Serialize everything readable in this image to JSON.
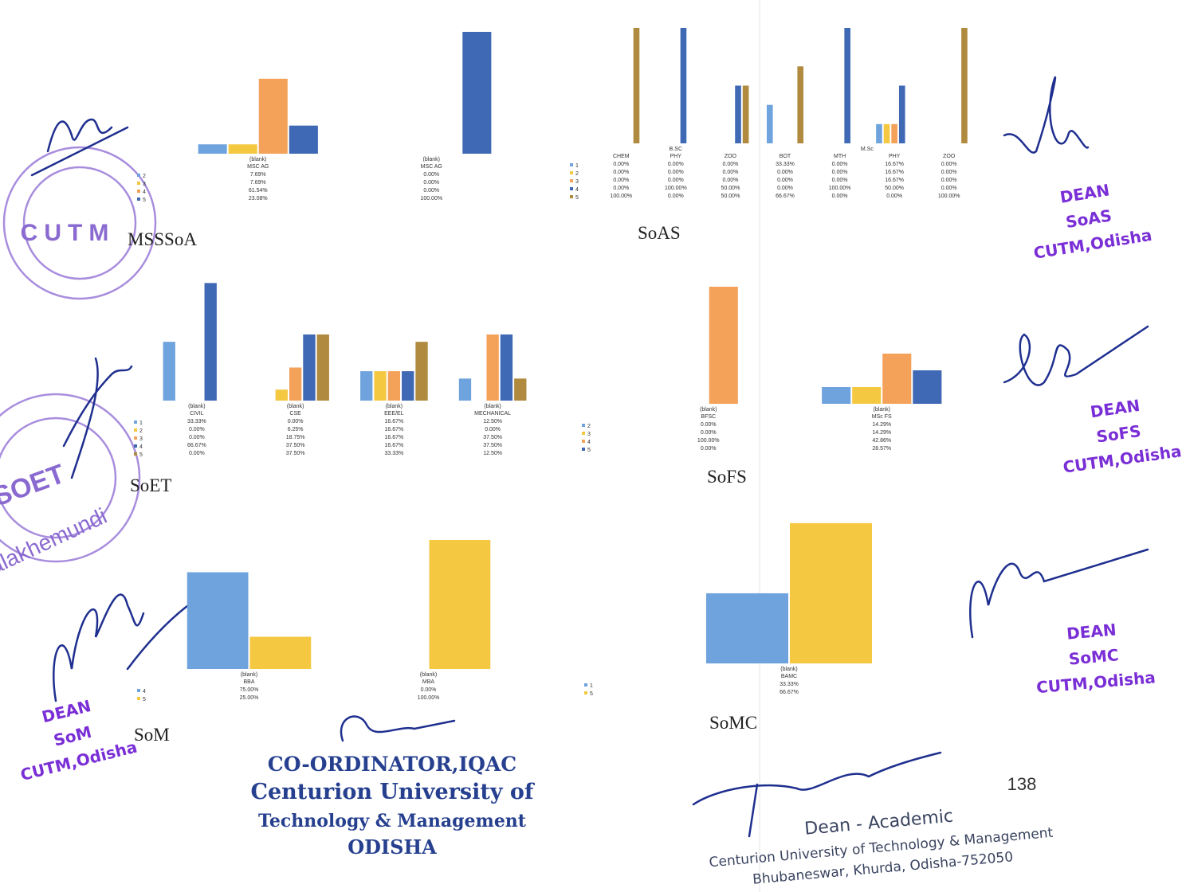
{
  "chart_data": [
    {
      "type": "bar",
      "title": "MSSSoA",
      "ylim": [
        0,
        100
      ],
      "groups": [
        {
          "label": "(blank)",
          "categories": [
            "MSC AG"
          ]
        },
        {
          "label": "(blank)",
          "categories": [
            "MSC AG"
          ]
        }
      ],
      "series": [
        {
          "name": "2",
          "color": "#6fa3de",
          "values": [
            7.69,
            0
          ],
          "value_labels": [
            "7.69%",
            "0.00%"
          ]
        },
        {
          "name": "3",
          "color": "#f5c842",
          "values": [
            7.69,
            0
          ],
          "value_labels": [
            "7.69%",
            "0.00%"
          ]
        },
        {
          "name": "4",
          "color": "#f4a15a",
          "values": [
            61.54,
            0
          ],
          "value_labels": [
            "61.54%",
            "0.00%"
          ]
        },
        {
          "name": "5",
          "color": "#3f68b5",
          "values": [
            23.08,
            100
          ],
          "value_labels": [
            "23.08%",
            "100.00%"
          ]
        }
      ]
    },
    {
      "type": "bar",
      "title": "SoAS",
      "ylim": [
        0,
        100
      ],
      "groups": [
        {
          "label": "B.SC",
          "categories": [
            "CHEM",
            "PHY",
            "ZOO"
          ]
        },
        {
          "label": "M.Sc",
          "categories": [
            "BOT",
            "MTH",
            "PHY",
            "ZOO"
          ]
        }
      ],
      "series": [
        {
          "name": "1",
          "color": "#6fa3de",
          "values": [
            0,
            0,
            0,
            33.33,
            0,
            16.67,
            0
          ],
          "value_labels": [
            "0.00%",
            "0.00%",
            "0.00%",
            "33.33%",
            "0.00%",
            "16.67%",
            "0.00%"
          ]
        },
        {
          "name": "2",
          "color": "#f5c842",
          "values": [
            0,
            0,
            0,
            0,
            0,
            16.67,
            0
          ],
          "value_labels": [
            "0.00%",
            "0.00%",
            "0.00%",
            "0.00%",
            "0.00%",
            "16.67%",
            "0.00%"
          ]
        },
        {
          "name": "3",
          "color": "#f4a15a",
          "values": [
            0,
            0,
            0,
            0,
            0,
            16.67,
            0
          ],
          "value_labels": [
            "0.00%",
            "0.00%",
            "0.00%",
            "0.00%",
            "0.00%",
            "16.67%",
            "0.00%"
          ]
        },
        {
          "name": "4",
          "color": "#3f68b5",
          "values": [
            0,
            100,
            50,
            0,
            100,
            50,
            0
          ],
          "value_labels": [
            "0.00%",
            "100.00%",
            "50.00%",
            "0.00%",
            "100.00%",
            "50.00%",
            "0.00%"
          ]
        },
        {
          "name": "5",
          "color": "#b08a3e",
          "values": [
            100,
            0,
            50,
            66.67,
            0,
            0,
            100
          ],
          "value_labels": [
            "100.00%",
            "0.00%",
            "50.00%",
            "66.67%",
            "0.00%",
            "0.00%",
            "100.00%"
          ]
        }
      ]
    },
    {
      "type": "bar",
      "title": "SoET",
      "ylim": [
        0,
        70
      ],
      "groups": [
        {
          "label": "(blank)",
          "categories": [
            "CIVIL"
          ]
        },
        {
          "label": "(blank)",
          "categories": [
            "CSE"
          ]
        },
        {
          "label": "(blank)",
          "categories": [
            "EEE/EL"
          ]
        },
        {
          "label": "(blank)",
          "categories": [
            "MECHANICAL"
          ]
        }
      ],
      "series": [
        {
          "name": "1",
          "color": "#6fa3de",
          "values": [
            33.33,
            0,
            16.67,
            12.5
          ],
          "value_labels": [
            "33.33%",
            "0.00%",
            "16.67%",
            "12.50%"
          ]
        },
        {
          "name": "2",
          "color": "#f5c842",
          "values": [
            0,
            6.25,
            16.67,
            0
          ],
          "value_labels": [
            "0.00%",
            "6.25%",
            "16.67%",
            "0.00%"
          ]
        },
        {
          "name": "3",
          "color": "#f4a15a",
          "values": [
            0,
            18.75,
            16.67,
            37.5
          ],
          "value_labels": [
            "0.00%",
            "18.75%",
            "16.67%",
            "37.50%"
          ]
        },
        {
          "name": "4",
          "color": "#3f68b5",
          "values": [
            66.67,
            37.5,
            16.67,
            37.5
          ],
          "value_labels": [
            "66.67%",
            "37.50%",
            "16.67%",
            "37.50%"
          ]
        },
        {
          "name": "5",
          "color": "#b08a3e",
          "values": [
            0,
            37.5,
            33.33,
            12.5
          ],
          "value_labels": [
            "0.00%",
            "37.50%",
            "33.33%",
            "12.50%"
          ]
        }
      ]
    },
    {
      "type": "bar",
      "title": "SoFS",
      "ylim": [
        0,
        100
      ],
      "groups": [
        {
          "label": "(blank)",
          "categories": [
            "BFSC"
          ]
        },
        {
          "label": "(blank)",
          "categories": [
            "MSc FS"
          ]
        }
      ],
      "series": [
        {
          "name": "2",
          "color": "#6fa3de",
          "values": [
            0,
            14.29
          ],
          "value_labels": [
            "0.00%",
            "14.29%"
          ]
        },
        {
          "name": "3",
          "color": "#f5c842",
          "values": [
            0,
            14.29
          ],
          "value_labels": [
            "0.00%",
            "14.29%"
          ]
        },
        {
          "name": "4",
          "color": "#f4a15a",
          "values": [
            100,
            42.86
          ],
          "value_labels": [
            "100.00%",
            "42.86%"
          ]
        },
        {
          "name": "5",
          "color": "#3f68b5",
          "values": [
            0,
            28.57
          ],
          "value_labels": [
            "0.00%",
            "28.57%"
          ]
        }
      ]
    },
    {
      "type": "bar",
      "title": "SoM",
      "ylim": [
        0,
        100
      ],
      "groups": [
        {
          "label": "(blank)",
          "categories": [
            "BBA"
          ]
        },
        {
          "label": "(blank)",
          "categories": [
            "MBA"
          ]
        }
      ],
      "series": [
        {
          "name": "4",
          "color": "#6fa3de",
          "values": [
            75,
            0
          ],
          "value_labels": [
            "75.00%",
            "0.00%"
          ]
        },
        {
          "name": "5",
          "color": "#f5c842",
          "values": [
            25,
            100
          ],
          "value_labels": [
            "25.00%",
            "100.00%"
          ]
        }
      ]
    },
    {
      "type": "bar",
      "title": "SoMC",
      "ylim": [
        0,
        70
      ],
      "groups": [
        {
          "label": "(blank)",
          "categories": [
            "BAMC"
          ]
        }
      ],
      "series": [
        {
          "name": "1",
          "color": "#6fa3de",
          "values": [
            33.33
          ],
          "value_labels": [
            "33.33%"
          ]
        },
        {
          "name": "5",
          "color": "#f5c842",
          "values": [
            66.67
          ],
          "value_labels": [
            "66.67%"
          ]
        }
      ]
    }
  ],
  "stamps": [
    "CUTM",
    "SOET",
    "ralakhemundi"
  ],
  "dean_stamps": [
    {
      "lines": [
        "DEAN",
        "SoAS",
        "CUTM,Odisha"
      ]
    },
    {
      "lines": [
        "DEAN",
        "SoFS",
        "CUTM,Odisha"
      ]
    },
    {
      "lines": [
        "DEAN",
        "SoMC",
        "CUTM,Odisha"
      ]
    },
    {
      "lines": [
        "DEAN",
        "SoM",
        "CUTM,Odisha"
      ]
    }
  ],
  "iqac": {
    "lines": [
      "CO-ORDINATOR,IQAC",
      "Centurion University of",
      "Technology & Management",
      "ODISHA"
    ]
  },
  "dean_academic": {
    "lines": [
      "Dean - Academic",
      "Centurion University of Technology & Management",
      "Bhubaneswar, Khurda, Odisha-752050"
    ]
  },
  "page_number": 138
}
